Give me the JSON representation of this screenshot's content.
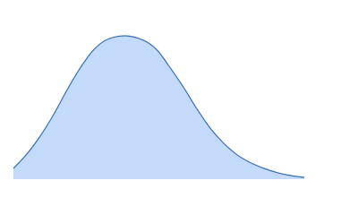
{
  "chart_data": {
    "type": "area",
    "x": [
      0,
      4.6,
      9.2,
      13.8,
      18.5,
      23.1,
      27.7,
      32.3,
      38.5,
      44.6,
      49.2,
      53.8,
      58.5,
      63.1,
      67.7,
      72.3,
      76.9,
      81.5,
      86.2,
      90.8,
      95.4,
      100
    ],
    "values": [
      0.075,
      0.175,
      0.3,
      0.45,
      0.625,
      0.78,
      0.905,
      0.975,
      1,
      0.97,
      0.905,
      0.78,
      0.64,
      0.49,
      0.355,
      0.25,
      0.17,
      0.115,
      0.075,
      0.045,
      0.025,
      0.0125
    ],
    "xlim": [
      0,
      100
    ],
    "ylim": [
      0,
      1
    ],
    "color": "#c4dafb",
    "edgecolor": "#3b6db5"
  }
}
